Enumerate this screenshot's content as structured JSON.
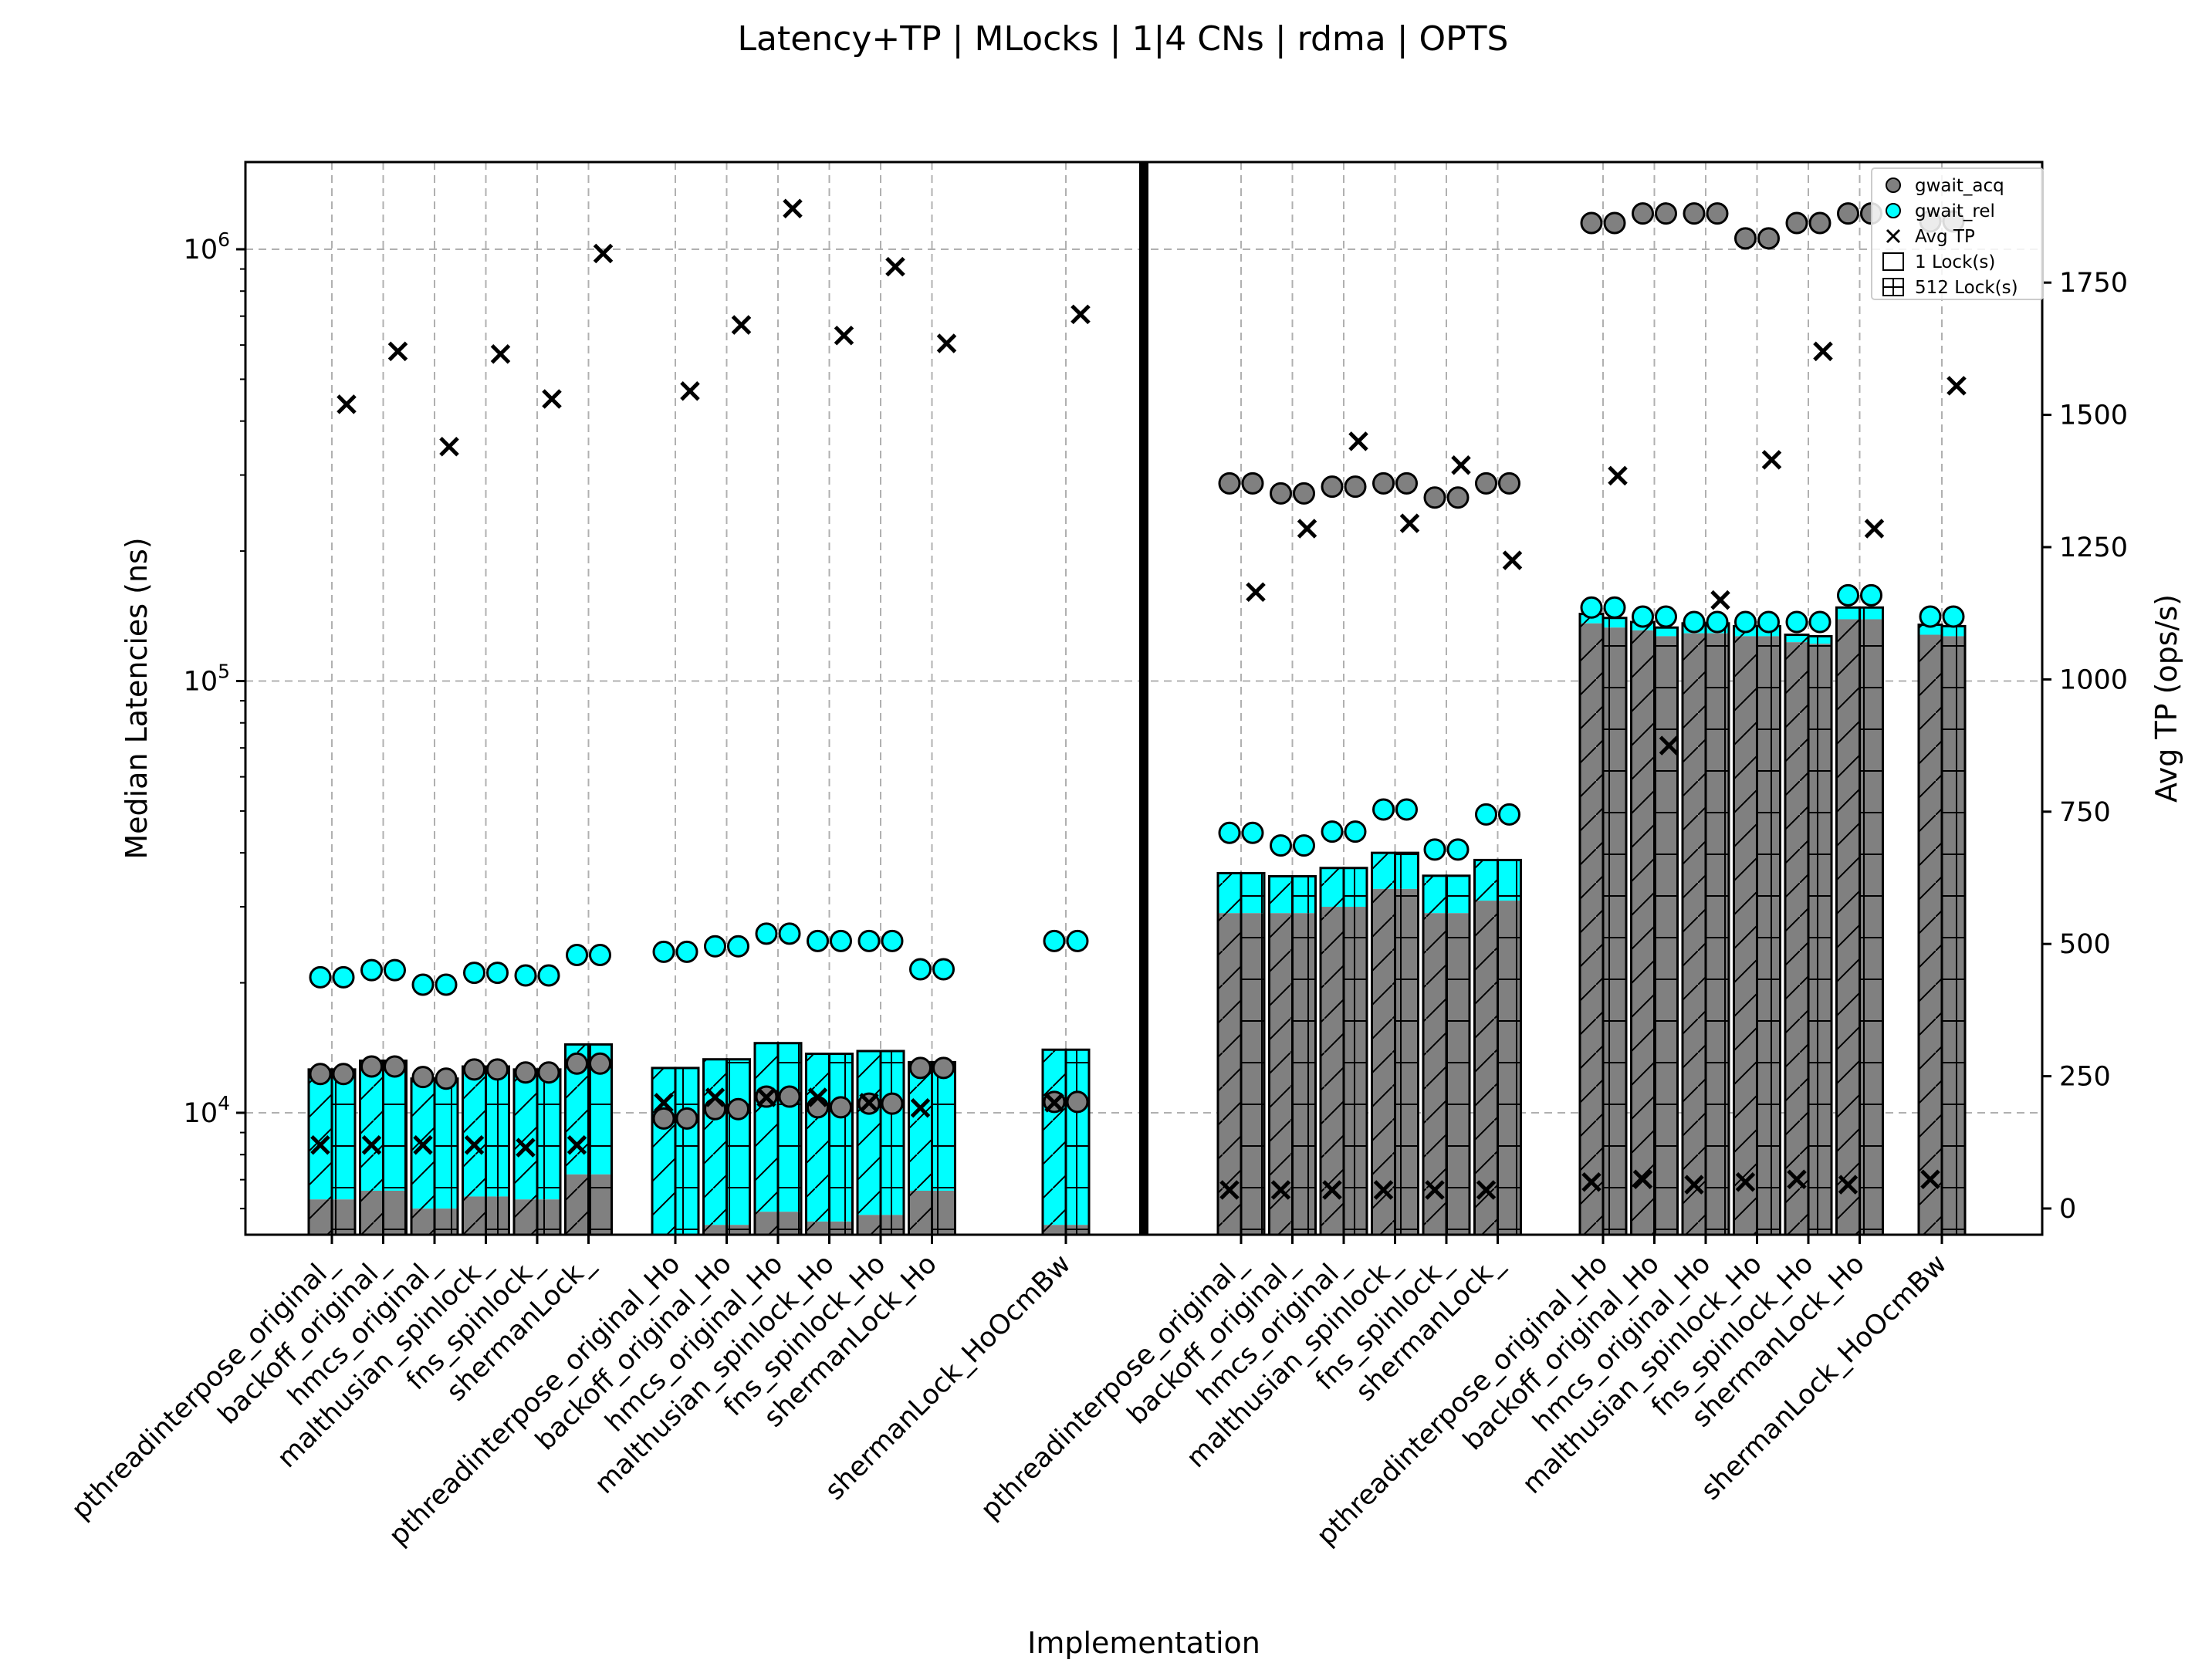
{
  "chart_data": {
    "type": "bar",
    "title": "Latency+TP | MLocks | 1|4 CNs | rdma | OPTS",
    "xlabel": "Implementation",
    "ylabel": "Median Latencies (ns)",
    "y2label": "Avg TP (ops/s)",
    "yscale": "log",
    "ylim": [
      5000,
      1600000
    ],
    "y2lim": [
      -60,
      1960
    ],
    "y_ticks": [
      {
        "value": 10000,
        "base": "10",
        "exp": "4"
      },
      {
        "value": 100000,
        "base": "10",
        "exp": "5"
      },
      {
        "value": 1000000,
        "base": "10",
        "exp": "6"
      }
    ],
    "y2_ticks": [
      0,
      250,
      500,
      750,
      1000,
      1250,
      1500,
      1750
    ],
    "grid": true,
    "legend_position": "top-right",
    "legend": [
      "gwait_acq",
      "gwait_rel",
      "Avg TP",
      "1 Lock(s)",
      "512 Lock(s)"
    ],
    "colors": {
      "gwait_acq": "#808080",
      "gwait_rel": "#00ffff",
      "avg_tp": "#000000"
    },
    "categories": [
      "pthreadinterpose_original_",
      "backoff_original_",
      "hmcs_original_",
      "malthusian_spinlock_",
      "fns_spinlock_",
      "shermanLock_",
      "pthreadinterpose_original_Ho",
      "backoff_original_Ho",
      "hmcs_original_Ho",
      "malthusian_spinlock_Ho",
      "fns_spinlock_Ho",
      "shermanLock_Ho",
      "shermanLock_HoOcmBw",
      "pthreadinterpose_original_",
      "backoff_original_",
      "hmcs_original_",
      "malthusian_spinlock_",
      "fns_spinlock_",
      "shermanLock_",
      "pthreadinterpose_original_Ho",
      "backoff_original_Ho",
      "hmcs_original_Ho",
      "malthusian_spinlock_Ho",
      "fns_spinlock_Ho",
      "shermanLock_Ho",
      "shermanLock_HoOcmBw"
    ],
    "series": [
      {
        "name": "gwait_acq",
        "lock_counts": [
          "1",
          "512"
        ],
        "values": [
          [
            6300,
            6300
          ],
          [
            6600,
            6600
          ],
          [
            6000,
            6000
          ],
          [
            6400,
            6400
          ],
          [
            6300,
            6300
          ],
          [
            7200,
            7200
          ],
          [
            4000,
            4000
          ],
          [
            5500,
            5500
          ],
          [
            5900,
            5900
          ],
          [
            5600,
            5600
          ],
          [
            5800,
            5800
          ],
          [
            6600,
            6600
          ],
          [
            5500,
            5500
          ],
          [
            29000,
            29000
          ],
          [
            29000,
            29000
          ],
          [
            30000,
            30000
          ],
          [
            33000,
            33000
          ],
          [
            29000,
            29000
          ],
          [
            31000,
            31000
          ],
          [
            136000,
            133000
          ],
          [
            131000,
            127000
          ],
          [
            129000,
            129000
          ],
          [
            127000,
            127000
          ],
          [
            123000,
            122000
          ],
          [
            139000,
            139000
          ],
          [
            128000,
            127000
          ]
        ]
      },
      {
        "name": "gwait_rel",
        "lock_counts": [
          "1",
          "512"
        ],
        "values": [
          [
            6300,
            6300
          ],
          [
            6600,
            6600
          ],
          [
            6000,
            6000
          ],
          [
            6400,
            6400
          ],
          [
            6300,
            6300
          ],
          [
            7200,
            7200
          ],
          [
            8700,
            8700
          ],
          [
            7800,
            7800
          ],
          [
            8600,
            8600
          ],
          [
            8100,
            8100
          ],
          [
            8100,
            8100
          ],
          [
            6500,
            6500
          ],
          [
            8500,
            8500
          ],
          [
            6900,
            6900
          ],
          [
            6300,
            6300
          ],
          [
            6900,
            6900
          ],
          [
            7000,
            7000
          ],
          [
            6400,
            6400
          ],
          [
            7500,
            7500
          ],
          [
            7000,
            7000
          ],
          [
            6000,
            6000
          ],
          [
            7000,
            7000
          ],
          [
            7000,
            7000
          ],
          [
            5000,
            5000
          ],
          [
            9000,
            9000
          ],
          [
            7000,
            7000
          ]
        ]
      },
      {
        "name": "gwait_acq_median",
        "values": [
          [
            12300,
            12300
          ],
          [
            12800,
            12800
          ],
          [
            12100,
            12000
          ],
          [
            12600,
            12600
          ],
          [
            12400,
            12400
          ],
          [
            13000,
            13000
          ],
          [
            9700,
            9700
          ],
          [
            10200,
            10200
          ],
          [
            10900,
            10900
          ],
          [
            10300,
            10300
          ],
          [
            10500,
            10500
          ],
          [
            12700,
            12700
          ],
          [
            10600,
            10600
          ],
          [
            287000,
            287000
          ],
          [
            272000,
            272000
          ],
          [
            282000,
            282000
          ],
          [
            287000,
            287000
          ],
          [
            266000,
            266000
          ],
          [
            287000,
            287000
          ],
          [
            1150000,
            1150000
          ],
          [
            1210000,
            1210000
          ],
          [
            1210000,
            1210000
          ],
          [
            1060000,
            1060000
          ],
          [
            1150000,
            1150000
          ],
          [
            1210000,
            1210000
          ],
          [
            1160000,
            1160000
          ]
        ]
      },
      {
        "name": "gwait_rel_median",
        "values": [
          [
            20600,
            20600
          ],
          [
            21400,
            21400
          ],
          [
            19800,
            19800
          ],
          [
            21100,
            21100
          ],
          [
            20800,
            20800
          ],
          [
            23200,
            23200
          ],
          [
            23600,
            23600
          ],
          [
            24300,
            24300
          ],
          [
            26000,
            26000
          ],
          [
            25000,
            25000
          ],
          [
            25000,
            25000
          ],
          [
            21500,
            21500
          ],
          [
            25000,
            25000
          ],
          [
            44500,
            44500
          ],
          [
            41600,
            41600
          ],
          [
            44800,
            44800
          ],
          [
            50400,
            50400
          ],
          [
            40700,
            40700
          ],
          [
            49100,
            49100
          ],
          [
            148000,
            148000
          ],
          [
            141000,
            141000
          ],
          [
            137000,
            137000
          ],
          [
            137000,
            137000
          ],
          [
            137000,
            137000
          ],
          [
            158000,
            158000
          ],
          [
            141000,
            141000
          ]
        ]
      },
      {
        "name": "Avg TP",
        "lock_counts": [
          "1",
          "512"
        ],
        "values": [
          [
            120,
            1520
          ],
          [
            120,
            1620
          ],
          [
            120,
            1440
          ],
          [
            120,
            1615
          ],
          [
            115,
            1530
          ],
          [
            120,
            1805
          ],
          [
            200,
            1545
          ],
          [
            210,
            1670
          ],
          [
            210,
            1890
          ],
          [
            210,
            1650
          ],
          [
            200,
            1780
          ],
          [
            190,
            1635
          ],
          [
            200,
            1690
          ],
          [
            35,
            1165
          ],
          [
            35,
            1285
          ],
          [
            35,
            1450
          ],
          [
            35,
            1295
          ],
          [
            35,
            1405
          ],
          [
            35,
            1225
          ],
          [
            50,
            1385
          ],
          [
            55,
            875
          ],
          [
            45,
            1150
          ],
          [
            50,
            1415
          ],
          [
            55,
            1620
          ],
          [
            45,
            1285
          ],
          [
            55,
            1555
          ]
        ]
      }
    ]
  }
}
